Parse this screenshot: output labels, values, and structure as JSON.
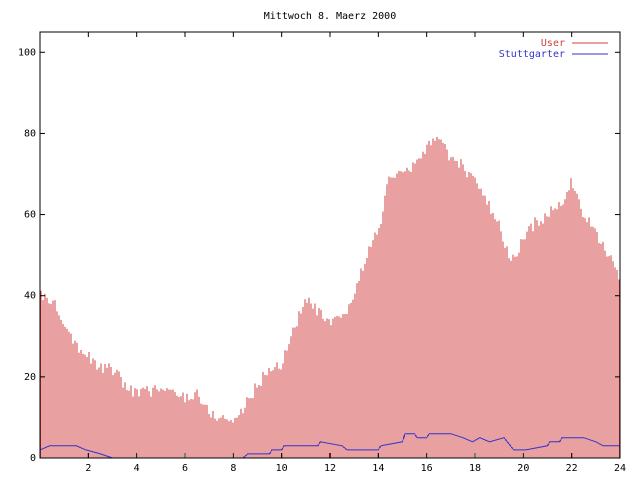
{
  "chart_data": {
    "type": "bar",
    "title": "Mittwoch 8. Maerz 2000",
    "xlabel": "",
    "ylabel": "",
    "xlim": [
      0,
      24
    ],
    "ylim": [
      0,
      105
    ],
    "x_ticks": [
      "2",
      "4",
      "6",
      "8",
      "10",
      "12",
      "14",
      "16",
      "18",
      "20",
      "22",
      "24"
    ],
    "y_ticks": [
      "0",
      "20",
      "40",
      "60",
      "80",
      "100"
    ],
    "grid": false,
    "legend_position": "top-right",
    "series": [
      {
        "name": "User",
        "style": "impulses",
        "color": "#d04040",
        "keypoints": [
          [
            0.0,
            40
          ],
          [
            0.5,
            39
          ],
          [
            1.0,
            34
          ],
          [
            1.5,
            28
          ],
          [
            2.0,
            25
          ],
          [
            2.5,
            22
          ],
          [
            3.0,
            22
          ],
          [
            3.5,
            18
          ],
          [
            4.0,
            16
          ],
          [
            5.0,
            17
          ],
          [
            6.0,
            15
          ],
          [
            6.5,
            16
          ],
          [
            7.0,
            11
          ],
          [
            7.5,
            10
          ],
          [
            8.0,
            9
          ],
          [
            8.5,
            13
          ],
          [
            9.0,
            18
          ],
          [
            9.5,
            22
          ],
          [
            10.0,
            23
          ],
          [
            10.5,
            32
          ],
          [
            11.0,
            39
          ],
          [
            11.5,
            36
          ],
          [
            12.0,
            33
          ],
          [
            12.5,
            34
          ],
          [
            13.0,
            40
          ],
          [
            13.5,
            50
          ],
          [
            14.0,
            56
          ],
          [
            14.5,
            70
          ],
          [
            15.0,
            70
          ],
          [
            15.5,
            72
          ],
          [
            16.0,
            76
          ],
          [
            16.3,
            80
          ],
          [
            16.5,
            78
          ],
          [
            17.0,
            74
          ],
          [
            17.5,
            72
          ],
          [
            18.0,
            68
          ],
          [
            18.5,
            63
          ],
          [
            19.0,
            57
          ],
          [
            19.5,
            48
          ],
          [
            20.0,
            54
          ],
          [
            20.5,
            58
          ],
          [
            21.0,
            60
          ],
          [
            21.5,
            62
          ],
          [
            22.0,
            68
          ],
          [
            22.5,
            60
          ],
          [
            23.0,
            55
          ],
          [
            23.5,
            50
          ],
          [
            24.0,
            45
          ]
        ]
      },
      {
        "name": "Stuttgarter",
        "style": "lines",
        "color": "#3333cc",
        "keypoints": [
          [
            0.0,
            2
          ],
          [
            0.4,
            3
          ],
          [
            1.5,
            3
          ],
          [
            1.9,
            2
          ],
          [
            2.5,
            1
          ],
          [
            3.0,
            0
          ],
          [
            8.4,
            0
          ],
          [
            8.6,
            1
          ],
          [
            9.5,
            1
          ],
          [
            9.6,
            2
          ],
          [
            10.0,
            2
          ],
          [
            10.1,
            3
          ],
          [
            11.5,
            3
          ],
          [
            11.6,
            4
          ],
          [
            12.5,
            3
          ],
          [
            12.7,
            2
          ],
          [
            14.0,
            2
          ],
          [
            14.1,
            3
          ],
          [
            15.0,
            4
          ],
          [
            15.1,
            6
          ],
          [
            15.5,
            6
          ],
          [
            15.6,
            5
          ],
          [
            16.0,
            5
          ],
          [
            16.1,
            6
          ],
          [
            17.0,
            6
          ],
          [
            17.5,
            5
          ],
          [
            17.9,
            4
          ],
          [
            18.2,
            5
          ],
          [
            18.6,
            4
          ],
          [
            19.2,
            5
          ],
          [
            19.6,
            2
          ],
          [
            20.0,
            2
          ],
          [
            20.1,
            2
          ],
          [
            21.0,
            3
          ],
          [
            21.1,
            4
          ],
          [
            21.5,
            4
          ],
          [
            21.6,
            5
          ],
          [
            22.5,
            5
          ],
          [
            23.0,
            4
          ],
          [
            23.3,
            3
          ],
          [
            24.0,
            3
          ]
        ]
      }
    ]
  }
}
